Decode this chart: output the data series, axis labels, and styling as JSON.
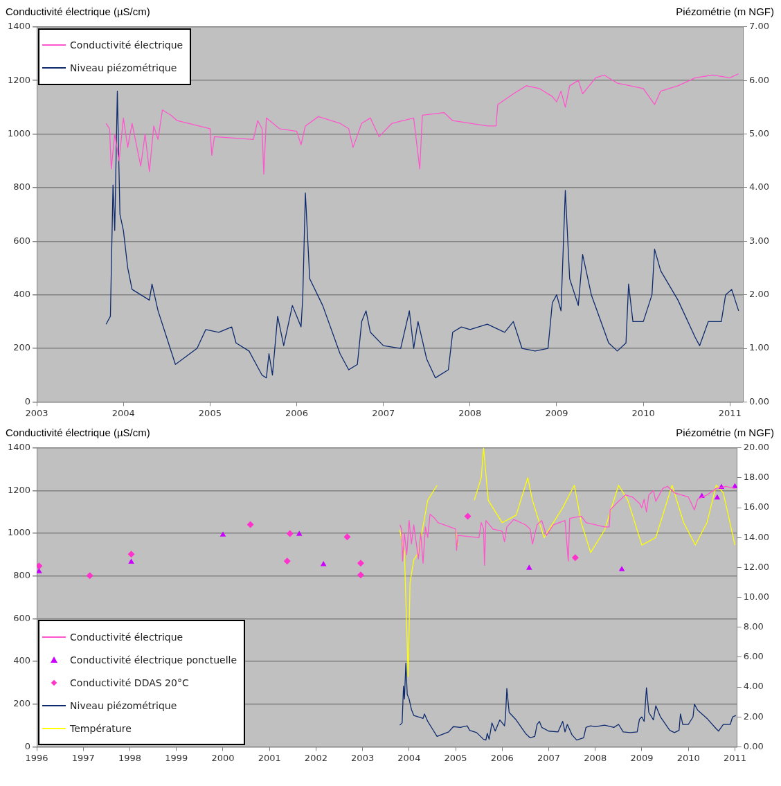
{
  "chart_data": [
    {
      "type": "line",
      "ylabel": "Conductivité électrique (µS/cm)",
      "y2label": "Piézométrie (m NGF)",
      "xlim": [
        2003,
        2011.15
      ],
      "xticks": [
        2003,
        2004,
        2005,
        2006,
        2007,
        2008,
        2009,
        2010,
        2011
      ],
      "ylim": [
        0,
        1400
      ],
      "yticks": [
        0,
        200,
        400,
        600,
        800,
        1000,
        1200,
        1400
      ],
      "y2lim": [
        0,
        7
      ],
      "y2ticks": [
        {
          "value": 0,
          "label": "0.00"
        },
        {
          "value": 1,
          "label": "1.00"
        },
        {
          "value": 2,
          "label": "2.00"
        },
        {
          "value": 3,
          "label": "3.00"
        },
        {
          "value": 4,
          "label": "4.00"
        },
        {
          "value": 5,
          "label": "5.00"
        },
        {
          "value": 6,
          "label": "6.00"
        },
        {
          "value": 7,
          "label": "7.00"
        }
      ],
      "grid": "y",
      "legend": "top left",
      "marker": "none",
      "series": [
        {
          "name": "Conductivité électrique",
          "color": "#ff55cc",
          "x": [
            2003.8,
            2003.84,
            2003.86,
            2003.9,
            2003.95,
            2004.0,
            2004.05,
            2004.1,
            2004.2,
            2004.25,
            2004.3,
            2004.35,
            2004.4,
            2004.45,
            2004.55,
            2004.62,
            2005.0,
            2005.02,
            2005.05,
            2005.5,
            2005.55,
            2005.6,
            2005.62,
            2005.65,
            2005.8,
            2006.0,
            2006.05,
            2006.1,
            2006.25,
            2006.5,
            2006.6,
            2006.65,
            2006.75,
            2006.85,
            2006.95,
            2007.1,
            2007.35,
            2007.42,
            2007.45,
            2007.7,
            2007.8,
            2008.2,
            2008.3,
            2008.32,
            2008.5,
            2008.65,
            2008.8,
            2008.95,
            2009.0,
            2009.05,
            2009.1,
            2009.15,
            2009.25,
            2009.3,
            2009.45,
            2009.55,
            2009.7,
            2009.85,
            2010.0,
            2010.13,
            2010.2,
            2010.4,
            2010.6,
            2010.8,
            2011.0,
            2011.1
          ],
          "values": [
            1040,
            1020,
            870,
            1000,
            900,
            1060,
            950,
            1040,
            880,
            1000,
            860,
            1030,
            980,
            1090,
            1070,
            1050,
            1020,
            920,
            990,
            980,
            1050,
            1020,
            850,
            1060,
            1020,
            1010,
            960,
            1030,
            1065,
            1040,
            1020,
            950,
            1040,
            1060,
            990,
            1040,
            1060,
            870,
            1070,
            1080,
            1050,
            1030,
            1030,
            1110,
            1150,
            1180,
            1170,
            1140,
            1120,
            1160,
            1100,
            1180,
            1200,
            1150,
            1210,
            1220,
            1190,
            1180,
            1170,
            1110,
            1160,
            1180,
            1210,
            1220,
            1210,
            1225
          ]
        },
        {
          "name": "Niveau piézométrique",
          "color": "#0d2a6e",
          "axis": "y2",
          "x": [
            2003.8,
            2003.85,
            2003.88,
            2003.9,
            2003.93,
            2003.96,
            2004.0,
            2004.05,
            2004.1,
            2004.3,
            2004.33,
            2004.4,
            2004.5,
            2004.6,
            2004.85,
            2004.95,
            2005.1,
            2005.25,
            2005.3,
            2005.45,
            2005.6,
            2005.65,
            2005.68,
            2005.72,
            2005.78,
            2005.85,
            2005.95,
            2006.0,
            2006.05,
            2006.07,
            2006.1,
            2006.15,
            2006.3,
            2006.5,
            2006.6,
            2006.7,
            2006.75,
            2006.8,
            2006.85,
            2007.0,
            2007.2,
            2007.3,
            2007.35,
            2007.4,
            2007.5,
            2007.6,
            2007.75,
            2007.8,
            2007.9,
            2008.0,
            2008.2,
            2008.4,
            2008.5,
            2008.6,
            2008.75,
            2008.9,
            2008.95,
            2009.0,
            2009.05,
            2009.1,
            2009.15,
            2009.25,
            2009.3,
            2009.4,
            2009.6,
            2009.7,
            2009.8,
            2009.83,
            2009.88,
            2010.0,
            2010.1,
            2010.13,
            2010.2,
            2010.4,
            2010.6,
            2010.65,
            2010.75,
            2010.9,
            2010.95,
            2011.02,
            2011.1
          ],
          "values": [
            1.45,
            1.6,
            4.05,
            3.2,
            5.8,
            3.5,
            3.2,
            2.5,
            2.1,
            1.9,
            2.2,
            1.7,
            1.2,
            0.7,
            1.0,
            1.35,
            1.3,
            1.4,
            1.1,
            0.95,
            0.5,
            0.45,
            0.9,
            0.5,
            1.6,
            1.05,
            1.8,
            1.6,
            1.4,
            1.95,
            3.9,
            2.3,
            1.8,
            0.9,
            0.6,
            0.7,
            1.5,
            1.7,
            1.3,
            1.05,
            1.0,
            1.7,
            1.0,
            1.5,
            0.8,
            0.45,
            0.6,
            1.3,
            1.4,
            1.35,
            1.45,
            1.3,
            1.5,
            1.0,
            0.95,
            1.0,
            1.85,
            2.0,
            1.7,
            3.95,
            2.3,
            1.8,
            2.75,
            2.0,
            1.1,
            0.95,
            1.1,
            2.2,
            1.5,
            1.5,
            2.0,
            2.85,
            2.45,
            1.9,
            1.2,
            1.05,
            1.5,
            1.5,
            2.0,
            2.1,
            1.7
          ]
        }
      ]
    },
    {
      "type": "line",
      "ylabel": "Conductivité électrique (µS/cm)",
      "y2label": "Piézométrie (m NGF)",
      "xlim": [
        1996,
        2011.05
      ],
      "xticks": [
        1996,
        1997,
        1998,
        1999,
        2000,
        2001,
        2002,
        2003,
        2004,
        2005,
        2006,
        2007,
        2008,
        2009,
        2010,
        2011
      ],
      "ylim": [
        0,
        1400
      ],
      "yticks": [
        0,
        200,
        400,
        600,
        800,
        1000,
        1200,
        1400
      ],
      "y2lim": [
        0,
        20
      ],
      "y2ticks": [
        {
          "value": 0,
          "label": "0.00"
        },
        {
          "value": 2,
          "label": "2.00"
        },
        {
          "value": 4,
          "label": "4.00"
        },
        {
          "value": 6,
          "label": "6.00"
        },
        {
          "value": 8,
          "label": "8.00"
        },
        {
          "value": 10,
          "label": "10.00"
        },
        {
          "value": 12,
          "label": "12.00"
        },
        {
          "value": 14,
          "label": "14.00"
        },
        {
          "value": 16,
          "label": "16.00"
        },
        {
          "value": 18,
          "label": "18.00"
        },
        {
          "value": 20,
          "label": "20.00"
        }
      ],
      "grid": "y",
      "legend": "bottom left",
      "marker": "none",
      "series": [
        {
          "name": "Conductivité électrique",
          "color": "#ff55cc",
          "x": [
            2003.8,
            2003.84,
            2003.86,
            2003.9,
            2003.95,
            2004.0,
            2004.05,
            2004.1,
            2004.2,
            2004.25,
            2004.3,
            2004.35,
            2004.4,
            2004.45,
            2004.55,
            2004.62,
            2005.0,
            2005.02,
            2005.05,
            2005.5,
            2005.55,
            2005.6,
            2005.62,
            2005.65,
            2005.8,
            2006.0,
            2006.05,
            2006.1,
            2006.25,
            2006.5,
            2006.6,
            2006.65,
            2006.75,
            2006.85,
            2006.95,
            2007.1,
            2007.35,
            2007.42,
            2007.45,
            2007.7,
            2007.8,
            2008.2,
            2008.3,
            2008.32,
            2008.5,
            2008.65,
            2008.8,
            2008.95,
            2009.0,
            2009.05,
            2009.1,
            2009.15,
            2009.25,
            2009.3,
            2009.45,
            2009.55,
            2009.7,
            2009.85,
            2010.0,
            2010.13,
            2010.2,
            2010.4,
            2010.6,
            2010.8,
            2011.0
          ],
          "values": [
            1040,
            1020,
            870,
            1000,
            900,
            1060,
            950,
            1040,
            880,
            1000,
            860,
            1030,
            980,
            1090,
            1070,
            1050,
            1020,
            920,
            990,
            980,
            1050,
            1020,
            850,
            1060,
            1020,
            1010,
            960,
            1030,
            1065,
            1040,
            1020,
            950,
            1040,
            1060,
            990,
            1040,
            1060,
            870,
            1070,
            1080,
            1050,
            1030,
            1030,
            1110,
            1150,
            1180,
            1170,
            1140,
            1120,
            1160,
            1100,
            1180,
            1200,
            1150,
            1210,
            1220,
            1190,
            1180,
            1170,
            1110,
            1160,
            1180,
            1210,
            1220,
            1210
          ]
        },
        {
          "name": "Conductivité électrique ponctuelle",
          "type": "scatter",
          "marker": "triangle",
          "color": "#cc00ff",
          "x": [
            1996.05,
            1998.03,
            2000.0,
            2001.64,
            2002.16,
            2006.58,
            2008.57,
            2010.29,
            2010.62,
            2010.71,
            2011.0
          ],
          "values": [
            821,
            866,
            993,
            996,
            854,
            837,
            831,
            1174,
            1167,
            1216,
            1219
          ]
        },
        {
          "name": "Conductivité DDAS 20°C",
          "type": "scatter",
          "marker": "diamond",
          "color": "#ff33cc",
          "x": [
            1996.05,
            1997.14,
            1998.03,
            2000.59,
            2001.38,
            2001.44,
            2002.67,
            2002.96,
            2002.96,
            2005.26,
            2007.57
          ],
          "values": [
            847,
            802,
            902,
            1041,
            870,
            999,
            983,
            860,
            805,
            1080,
            886
          ]
        },
        {
          "name": "Niveau piézométrique",
          "color": "#0d2a6e",
          "axis": "y2",
          "x": [
            2003.8,
            2003.85,
            2003.88,
            2003.9,
            2003.93,
            2003.96,
            2004.0,
            2004.05,
            2004.1,
            2004.3,
            2004.33,
            2004.4,
            2004.5,
            2004.6,
            2004.85,
            2004.95,
            2005.1,
            2005.25,
            2005.3,
            2005.45,
            2005.6,
            2005.65,
            2005.68,
            2005.72,
            2005.78,
            2005.85,
            2005.95,
            2006.0,
            2006.05,
            2006.07,
            2006.1,
            2006.15,
            2006.3,
            2006.5,
            2006.6,
            2006.7,
            2006.75,
            2006.8,
            2006.85,
            2007.0,
            2007.2,
            2007.3,
            2007.35,
            2007.4,
            2007.5,
            2007.6,
            2007.75,
            2007.8,
            2007.9,
            2008.0,
            2008.2,
            2008.4,
            2008.5,
            2008.6,
            2008.75,
            2008.9,
            2008.95,
            2009.0,
            2009.05,
            2009.1,
            2009.15,
            2009.25,
            2009.3,
            2009.4,
            2009.6,
            2009.7,
            2009.8,
            2009.83,
            2009.88,
            2010.0,
            2010.1,
            2010.13,
            2010.2,
            2010.4,
            2010.6,
            2010.65,
            2010.75,
            2010.9,
            2010.95,
            2011.02
          ],
          "values": [
            1.45,
            1.6,
            4.05,
            3.2,
            5.6,
            3.5,
            3.2,
            2.5,
            2.1,
            1.9,
            2.2,
            1.7,
            1.2,
            0.7,
            1.0,
            1.35,
            1.3,
            1.4,
            1.1,
            0.95,
            0.5,
            0.45,
            0.9,
            0.5,
            1.6,
            1.05,
            1.8,
            1.6,
            1.4,
            1.95,
            3.9,
            2.3,
            1.8,
            0.9,
            0.6,
            0.7,
            1.5,
            1.7,
            1.3,
            1.05,
            1.0,
            1.7,
            1.0,
            1.5,
            0.8,
            0.45,
            0.6,
            1.3,
            1.4,
            1.35,
            1.45,
            1.3,
            1.5,
            1.0,
            0.95,
            1.0,
            1.85,
            2.0,
            1.7,
            3.95,
            2.3,
            1.8,
            2.75,
            2.0,
            1.1,
            0.95,
            1.1,
            2.2,
            1.5,
            1.5,
            2.0,
            2.85,
            2.45,
            1.9,
            1.2,
            1.05,
            1.5,
            1.5,
            2.0,
            2.1
          ]
        },
        {
          "name": "Température",
          "color": "#ffff00",
          "axis": "y2",
          "x": [
            2003.8,
            2003.9,
            2003.98,
            2004.02,
            2004.1,
            2004.2,
            2004.4,
            2004.6,
            2004.7,
            2004.95,
            2005.0,
            2005.05,
            2005.2,
            2005.4,
            2005.55,
            2005.6,
            2005.7,
            2006.0,
            2006.3,
            2006.55,
            2006.65,
            2006.9,
            2007.3,
            2007.55,
            2007.7,
            2007.9,
            2008.2,
            2008.5,
            2008.7,
            2009.0,
            2009.3,
            2009.65,
            2009.9,
            2010.15,
            2010.4,
            2010.6,
            2010.75,
            2011.0
          ],
          "values": [
            14.5,
            13,
            4.7,
            11,
            12.5,
            13,
            16.5,
            17.5,
            null,
            null,
            14.5,
            13.5,
            null,
            16.5,
            18,
            20,
            16.5,
            15,
            15.5,
            18,
            16.5,
            14,
            16,
            17.5,
            15,
            13,
            14.5,
            17.5,
            16.5,
            13.5,
            14,
            17.5,
            15,
            13.5,
            15,
            17.5,
            17,
            13.5
          ]
        }
      ]
    }
  ]
}
